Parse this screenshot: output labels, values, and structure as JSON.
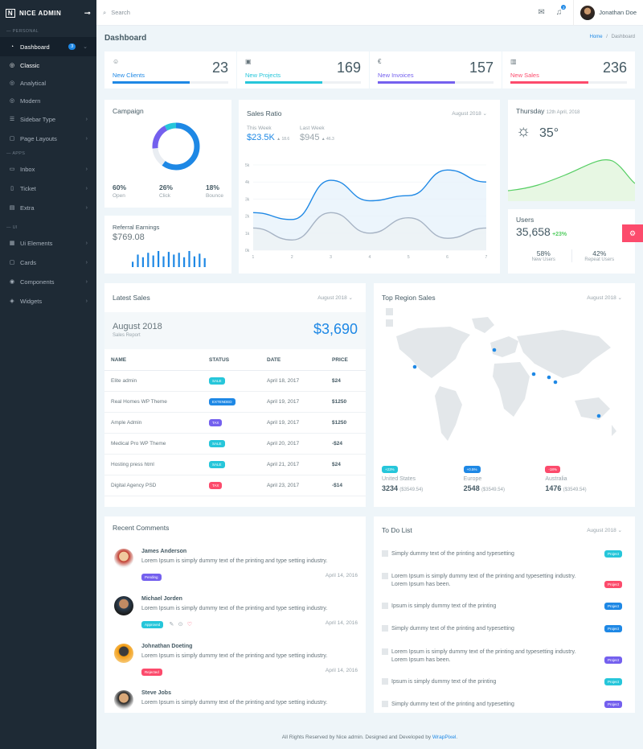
{
  "brand": "NICE ADMIN",
  "nav": {
    "personal": "— PERSONAL",
    "dashboard": "Dashboard",
    "dashboard_badge": "3",
    "classic": "Classic",
    "analytical": "Analytical",
    "modern": "Modern",
    "sidebar_type": "Sidebar Type",
    "page_layouts": "Page Layouts",
    "apps": "— APPS",
    "inbox": "Inbox",
    "ticket": "Ticket",
    "extra": "Extra",
    "ui": "— UI",
    "ui_elements": "Ui Elements",
    "cards": "Cards",
    "components": "Components",
    "widgets": "Widgets"
  },
  "topbar": {
    "search_placeholder": "Search",
    "notif_count": "2",
    "user_name": "Jonathan Doe"
  },
  "page": {
    "title": "Dashboard",
    "crumb_home": "Home",
    "crumb_sep": "/",
    "crumb_current": "Dashboard"
  },
  "stats": [
    {
      "label": "New Clients",
      "value": "23",
      "progress": 0.67,
      "color": "#1e88e5",
      "icon": "smile-icon"
    },
    {
      "label": "New Projects",
      "value": "169",
      "progress": 0.67,
      "color": "#26c6da",
      "icon": "image-icon"
    },
    {
      "label": "New Invoices",
      "value": "157",
      "progress": 0.67,
      "color": "#7460ee",
      "icon": "euro-icon"
    },
    {
      "label": "New Sales",
      "value": "236",
      "progress": 0.67,
      "color": "#fc4b6c",
      "icon": "bar-chart-icon"
    }
  ],
  "campaign": {
    "title": "Campaign",
    "items": [
      {
        "pct": "60%",
        "label": "Open"
      },
      {
        "pct": "26%",
        "label": "Click"
      },
      {
        "pct": "18%",
        "label": "Bounce"
      }
    ]
  },
  "referral": {
    "title": "Referral Earnings",
    "amount": "$769.08",
    "bars": [
      6,
      14,
      11,
      16,
      13,
      18,
      12,
      17,
      14,
      16,
      11,
      18,
      12,
      15,
      10
    ]
  },
  "sales_ratio": {
    "title": "Sales Ratio",
    "period": "August 2018",
    "this_week_label": "This Week",
    "this_week_value": "$23.5K",
    "this_week_change": "▲ 18.6",
    "last_week_label": "Last Week",
    "last_week_value": "$945",
    "last_week_change": "▲ 46.3"
  },
  "chart_data": {
    "type": "line",
    "x": [
      1,
      2,
      3,
      4,
      5,
      6,
      7
    ],
    "series": [
      {
        "values": [
          2.2,
          1.8,
          4.1,
          2.9,
          3.2,
          4.7,
          4.0
        ],
        "color": "#1e88e5"
      },
      {
        "values": [
          1.3,
          0.6,
          2.2,
          1.0,
          1.9,
          0.7,
          1.3
        ],
        "color": "#a6b3c4"
      }
    ],
    "ylim": [
      0,
      5
    ],
    "yticks": [
      "0k",
      "1k",
      "2k",
      "3k",
      "4k",
      "5k"
    ],
    "xticks": [
      "1",
      "2",
      "3",
      "4",
      "5",
      "6",
      "7"
    ]
  },
  "weather": {
    "day": "Thursday",
    "date": "12th April, 2018",
    "temp": "35°"
  },
  "users": {
    "title": "Users",
    "count": "35,658",
    "change": "+23%",
    "new_pct": "58%",
    "new_label": "New Users",
    "repeat_pct": "42%",
    "repeat_label": "Repeat Users"
  },
  "latest_sales": {
    "title": "Latest Sales",
    "period": "August 2018",
    "month": "August 2018",
    "sub": "Sales Report",
    "total": "$3,690",
    "headers": [
      "NAME",
      "STATUS",
      "DATE",
      "PRICE"
    ],
    "rows": [
      {
        "name": "Elite admin",
        "status": "SALE",
        "color": "#26c6da",
        "date": "April 18, 2017",
        "price": "$24"
      },
      {
        "name": "Real Homes WP Theme",
        "status": "EXTENDED",
        "color": "#1e88e5",
        "date": "April 19, 2017",
        "price": "$1250"
      },
      {
        "name": "Ample Admin",
        "status": "Tax",
        "color": "#7460ee",
        "date": "April 19, 2017",
        "price": "$1250"
      },
      {
        "name": "Medical Pro WP Theme",
        "status": "Sale",
        "color": "#26c6da",
        "date": "April 20, 2017",
        "price": "-$24"
      },
      {
        "name": "Hosting press html",
        "status": "SALE",
        "color": "#26c6da",
        "date": "April 21, 2017",
        "price": "$24"
      },
      {
        "name": "Digital Agency PSD",
        "status": "Tax",
        "color": "#fc4b6c",
        "date": "April 23, 2017",
        "price": "-$14"
      }
    ]
  },
  "region": {
    "title": "Top Region Sales",
    "period": "August 2018",
    "regions": [
      {
        "badge": "+23%",
        "color": "#26c6da",
        "name": "United States",
        "value": "3234",
        "sub": "($3549.54)"
      },
      {
        "badge": "+0.5%",
        "color": "#1e88e5",
        "name": "Europe",
        "value": "2548",
        "sub": "($3549.54)"
      },
      {
        "badge": "-18%",
        "color": "#fc4b6c",
        "name": "Australia",
        "value": "1476",
        "sub": "($3549.54)"
      }
    ]
  },
  "comments": {
    "title": "Recent Comments",
    "items": [
      {
        "name": "James Anderson",
        "text": "Lorem Ipsum is simply dummy text of the printing and type setting industry.",
        "status": "Pending",
        "color": "#7460ee",
        "date": "April 14, 2016"
      },
      {
        "name": "Michael Jorden",
        "text": "Lorem Ipsum is simply dummy text of the printing and type setting industry.",
        "status": "Approved",
        "color": "#26c6da",
        "date": "April 14, 2016"
      },
      {
        "name": "Johnathan Doeting",
        "text": "Lorem Ipsum is simply dummy text of the printing and type setting industry.",
        "status": "Rejected",
        "color": "#fc4b6c",
        "date": "April 14, 2016"
      },
      {
        "name": "Steve Jobs",
        "text": "Lorem Ipsum is simply dummy text of the printing and type setting industry.",
        "status": "",
        "color": "",
        "date": ""
      }
    ]
  },
  "todo": {
    "title": "To Do List",
    "period": "August 2018",
    "items": [
      {
        "text": "Simply dummy text of the printing and typesetting",
        "tag": "Project",
        "color": "#26c6da"
      },
      {
        "text": "Lorem Ipsum is simply dummy text of the printing and typesetting industry. Lorem Ipsum has been.",
        "tag": "Project",
        "color": "#fc4b6c"
      },
      {
        "text": "Ipsum is simply dummy text of the printing",
        "tag": "Project",
        "color": "#1e88e5"
      },
      {
        "text": "Simply dummy text of the printing and typesetting",
        "tag": "Project",
        "color": "#1e88e5"
      },
      {
        "text": "Lorem Ipsum is simply dummy text of the printing and typesetting industry. Lorem Ipsum has been.",
        "tag": "Project",
        "color": "#7460ee"
      },
      {
        "text": "Ipsum is simply dummy text of the printing",
        "tag": "Project",
        "color": "#26c6da"
      },
      {
        "text": "Simply dummy text of the printing and typesetting",
        "tag": "Project",
        "color": "#7460ee"
      }
    ]
  },
  "footer": {
    "text": "All Rights Reserved by Nice admin. Designed and Developed by ",
    "link": "WrapPixel",
    "end": "."
  }
}
